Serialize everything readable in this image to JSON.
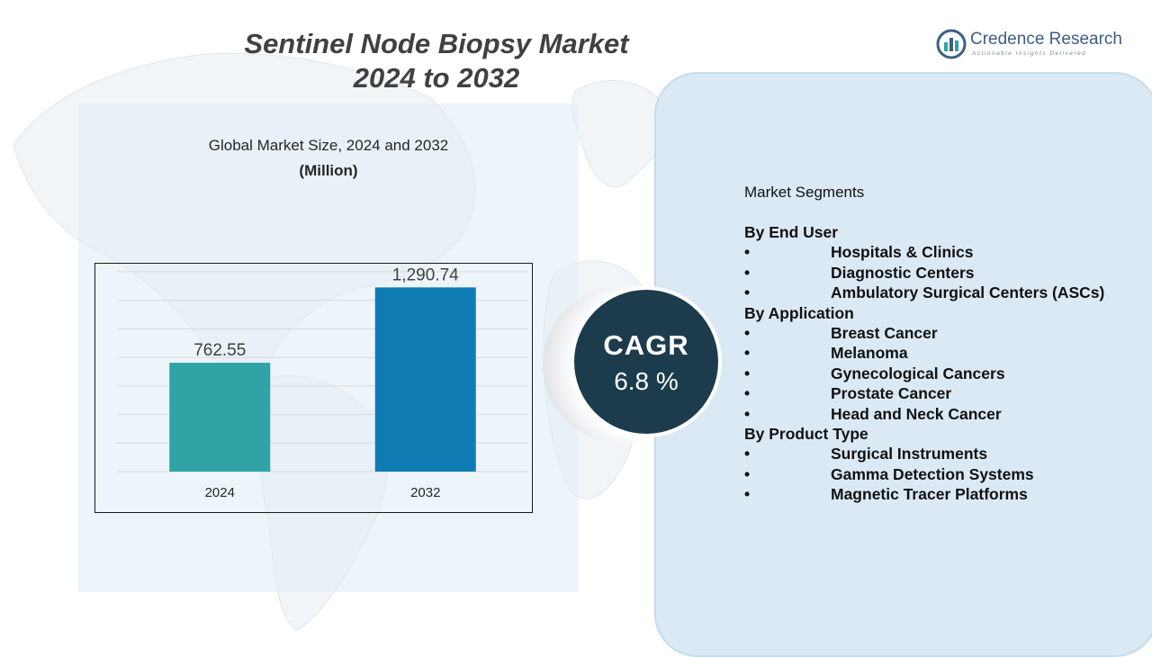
{
  "title": {
    "line1": "Sentinel Node Biopsy Market",
    "line2": "2024 to 2032"
  },
  "logo": {
    "name": "Credence Research",
    "tagline": "Actionable Insights Delivered"
  },
  "chart_heading": "Global Market Size, 2024 and 2032",
  "chart_unit": "(Million)",
  "chart_data": {
    "type": "bar",
    "title": "Global Market Size, 2024 and 2032",
    "ylabel": "(Million)",
    "xlabel": "",
    "categories": [
      "2024",
      "2032"
    ],
    "values": [
      762.55,
      1290.74
    ],
    "value_labels": [
      "762.55",
      "1,290.74"
    ],
    "colors": [
      "#2fa3a5",
      "#0f7db3"
    ],
    "ylim": [
      0,
      1400
    ],
    "grid": true
  },
  "cagr": {
    "label": "CAGR",
    "value": "6.8 %"
  },
  "segments": {
    "title": "Market Segments",
    "bullet": "•",
    "groups": [
      {
        "heading": "By End User",
        "items": [
          "Hospitals & Clinics",
          "Diagnostic Centers",
          "Ambulatory Surgical Centers (ASCs)"
        ]
      },
      {
        "heading": "By Application",
        "items": [
          "Breast Cancer",
          "Melanoma",
          "Gynecological Cancers",
          "Prostate Cancer",
          "Head and Neck Cancer"
        ]
      },
      {
        "heading": "By Product Type",
        "items": [
          "Surgical Instruments",
          "Gamma Detection Systems",
          "Magnetic Tracer Platforms"
        ]
      }
    ]
  },
  "colors": {
    "title": "#404040",
    "cagr_bg": "#1c3c4e",
    "panel": "#dbe9f4",
    "logo": "#3d5e86"
  }
}
